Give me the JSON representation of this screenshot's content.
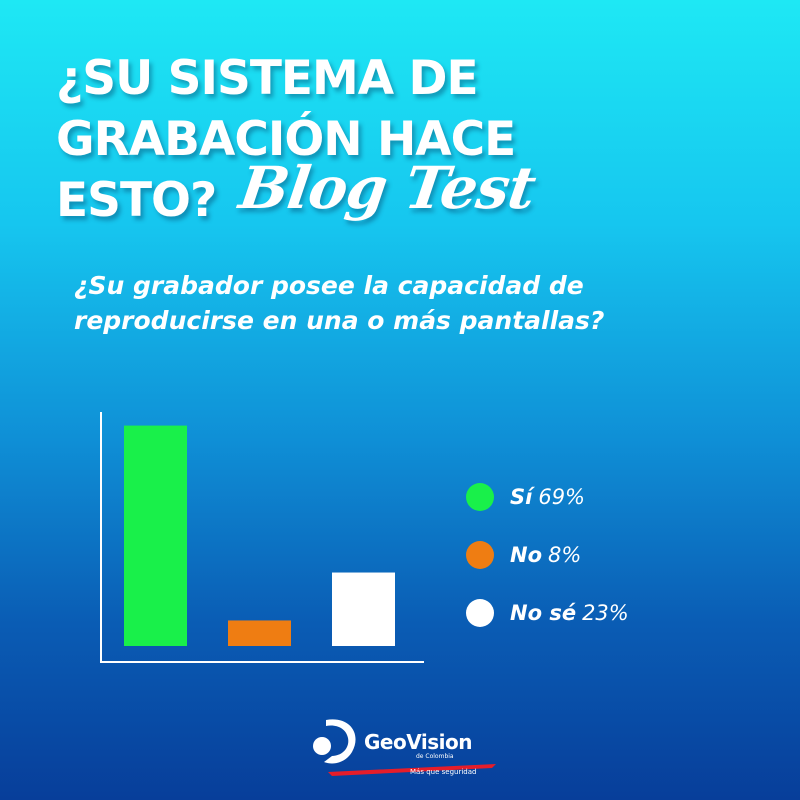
{
  "header": {
    "title_lines": [
      "¿SU SISTEMA DE",
      "GRABACIÓN HACE",
      "ESTO?"
    ],
    "tag": "Blog Test"
  },
  "question": {
    "lines": [
      "¿Su grabador posee la capacidad de",
      "reproducirse en una o más pantallas?"
    ]
  },
  "chart_data": {
    "type": "bar",
    "title": "",
    "xlabel": "",
    "ylabel": "",
    "categories": [
      "Sí",
      "No",
      "No sé"
    ],
    "values": [
      69,
      8,
      23
    ],
    "value_labels": [
      "69%",
      "8%",
      "23%"
    ],
    "colors": [
      "#19f04a",
      "#ef7d12",
      "#ffffff"
    ],
    "ylim": [
      0,
      72
    ],
    "grid": false,
    "legend": "right"
  },
  "logo": {
    "name": "GeoVision",
    "sub": "de Colombia",
    "tagline": "Más que seguridad",
    "accent": "#e51d2a"
  }
}
